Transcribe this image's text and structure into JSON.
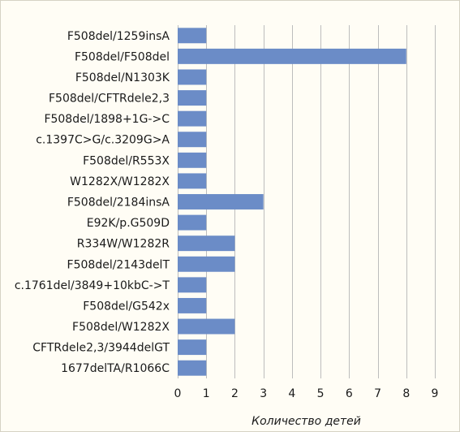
{
  "chart_data": {
    "type": "bar",
    "orientation": "horizontal",
    "categories": [
      "F508del/1259insA",
      "F508del/F508del",
      "F508del/N1303K",
      "F508del/CFTRdele2,3",
      "F508del/1898+1G->C",
      "c.1397C>G/c.3209G>A",
      "F508del/R553X",
      "W1282X/W1282X",
      "F508del/2184insA",
      "E92K/p.G509D",
      "R334W/W1282R",
      "F508del/2143delT",
      "c.1761del/3849+10kbC->T",
      "F508del/G542x",
      "F508del/W1282X",
      "CFTRdele2,3/3944delGT",
      "1677delTA/R1066C"
    ],
    "values": [
      1,
      8,
      1,
      1,
      1,
      1,
      1,
      1,
      3,
      1,
      2,
      2,
      1,
      1,
      2,
      1,
      1
    ],
    "xlabel": "Количество детей",
    "ylabel": "",
    "xlim": [
      0,
      9
    ],
    "xticks": [
      "0",
      "1",
      "2",
      "3",
      "4",
      "5",
      "6",
      "7",
      "8",
      "9"
    ],
    "grid": "vertical",
    "bar_color": "#6b8cc7"
  }
}
